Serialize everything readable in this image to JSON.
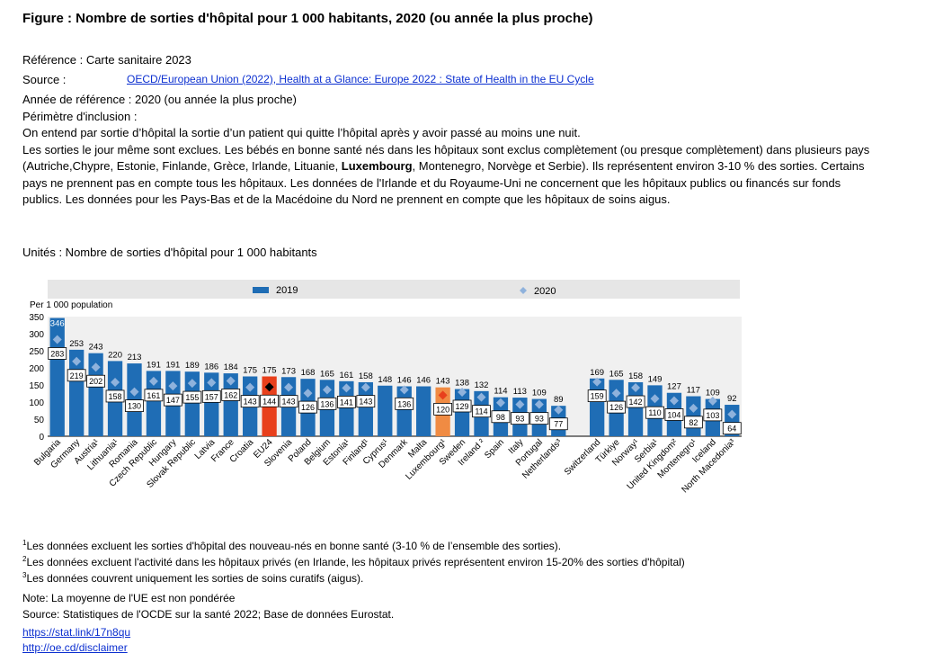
{
  "header": {
    "title": "Figure : Nombre de sorties d'hôpital pour 1 000 habitants, 2020 (ou année la plus proche)",
    "reference": "Référence : Carte sanitaire 2023",
    "source_label": "Source :",
    "source_link": "OECD/European Union (2022), Health at a Glance: Europe 2022 : State of Health in the EU Cycle",
    "reference_year": "Année de référence : 2020 (ou année la plus proche)",
    "scope_label": "Périmètre d'inclusion :",
    "desc_line1": "On entend par sortie d’hôpital la sortie d’un patient qui quitte l’hôpital après y avoir passé au moins une nuit.",
    "desc_before_bold": "Les sorties le jour même sont exclues. Les bébés en bonne santé nés dans les hôpitaux sont exclus complètement (ou presque complètement) dans plusieurs pays (Autriche,Chypre, Estonie, Finlande, Grèce, Irlande, Lituanie, ",
    "desc_bold": "Luxembourg",
    "desc_after_bold": ", Montenegro, Norvège et Serbie). Ils représentent environ 3-10 % des sorties. Certains pays ne prennent pas en compte tous les hôpitaux. Les données de l'Irlande et du Royaume-Uni ne concernent que les hôpitaux publics ou financés sur fonds publics. Les données pour les Pays-Bas et de la Macédoine du Nord ne prennent en compte que les hôpitaux de soins aigus.",
    "units": "Unités : Nombre de sorties d'hôpital pour 1 000 habitants"
  },
  "footnotes": {
    "n1_mark": "1",
    "n1": "Les données excluent les sorties d'hôpital des nouveau-nés en bonne santé (3-10 % de l’ensemble des sorties).",
    "n2_mark": "2",
    "n2": "Les données excluent l'activité dans les hôpitaux privés (en Irlande, les hôpitaux privés représentent environ 15-20% des sorties d'hôpital)",
    "n3_mark": "3",
    "n3": "Les données couvrent uniquement les sorties de soins curatifs (aigus).",
    "note": "Note: La moyenne de l'UE est non pondérée",
    "source": "Source: Statistiques de l'OCDE sur la santé 2022; Base de données Eurostat.",
    "link1": "https://stat.link/17n8qu",
    "link2": "http://oe.cd/disclaimer"
  },
  "chart_data": {
    "type": "bar",
    "ylabel": "Per 1 000 population",
    "ylim": [
      0,
      350
    ],
    "yticks": [
      0,
      50,
      100,
      150,
      200,
      250,
      300,
      350
    ],
    "grid": false,
    "legend_position": "top",
    "categories": [
      "Bulgaria",
      "Germany",
      "Austria¹",
      "Lithuania¹",
      "Romania",
      "Czech Republic",
      "Hungary",
      "Slovak Republic",
      "Latvia",
      "France",
      "Croatia",
      "EU24",
      "Slovenia",
      "Poland",
      "Belgium",
      "Estonia¹",
      "Finland¹",
      "Cyprus¹",
      "Denmark",
      "Malta",
      "Luxembourg¹",
      "Sweden",
      "Ireland ²",
      "Spain",
      "Italy",
      "Portugal",
      "Netherlands³",
      "",
      "Switzerland",
      "Türkiye",
      "Norway¹",
      "Serbia¹",
      "United Kingdom²",
      "Montenegro¹",
      "Iceland",
      "North Macedonia³"
    ],
    "series": [
      {
        "name": "2019",
        "color": "#1f6db5",
        "values": [
          346,
          253,
          243,
          220,
          213,
          191,
          191,
          189,
          186,
          184,
          175,
          175,
          173,
          168,
          165,
          161,
          158,
          148,
          146,
          146,
          143,
          138,
          132,
          114,
          113,
          109,
          89,
          null,
          169,
          165,
          158,
          149,
          127,
          117,
          109,
          92
        ]
      },
      {
        "name": "2020",
        "color": "#8fb2dc",
        "values": [
          283,
          219,
          202,
          158,
          130,
          161,
          147,
          155,
          157,
          162,
          143,
          144,
          143,
          126,
          136,
          141,
          143,
          null,
          136,
          null,
          120,
          129,
          114,
          98,
          93,
          93,
          77,
          null,
          159,
          126,
          142,
          110,
          104,
          82,
          103,
          64
        ]
      }
    ],
    "highlight": [
      {
        "category": "EU24",
        "bar_color": "#e8401c",
        "marker_color": "#000000"
      },
      {
        "category": "Luxembourg¹",
        "bar_color": "#f08b43",
        "marker_color": "#e8401c"
      }
    ]
  }
}
